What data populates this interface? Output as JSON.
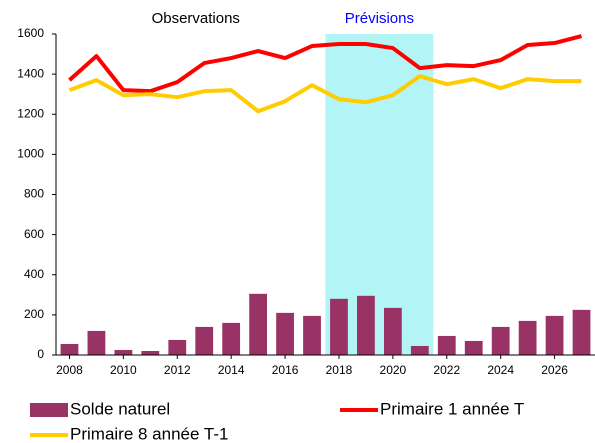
{
  "chart_data": {
    "type": "bar-line",
    "x": [
      2008,
      2009,
      2010,
      2011,
      2012,
      2013,
      2014,
      2015,
      2016,
      2017,
      2018,
      2019,
      2020,
      2021,
      2022,
      2023,
      2024,
      2025,
      2026,
      2027
    ],
    "series": [
      {
        "name": "Solde naturel",
        "type": "bar",
        "color": "#993366",
        "values": [
          55,
          120,
          25,
          20,
          75,
          140,
          160,
          305,
          210,
          195,
          280,
          295,
          235,
          45,
          95,
          70,
          140,
          170,
          195,
          225
        ]
      },
      {
        "name": "Primaire 1 année T",
        "type": "line",
        "color": "#ff0000",
        "values": [
          1370,
          1490,
          1320,
          1315,
          1360,
          1455,
          1480,
          1515,
          1480,
          1540,
          1550,
          1550,
          1530,
          1430,
          1445,
          1440,
          1470,
          1545,
          1555,
          1590
        ]
      },
      {
        "name": "Primaire 8 année T-1",
        "type": "line",
        "color": "#ffcc00",
        "values": [
          1320,
          1370,
          1295,
          1300,
          1285,
          1315,
          1320,
          1215,
          1265,
          1345,
          1275,
          1260,
          1295,
          1390,
          1350,
          1375,
          1330,
          1375,
          1365,
          1365
        ]
      }
    ],
    "observations_label": "Observations",
    "forecast": {
      "label": "Prévisions",
      "start": 2018,
      "end": 2021,
      "color": "#b3f5f7"
    },
    "xlim": [
      2007.5,
      2027.5
    ],
    "xticks": [
      2008,
      2010,
      2012,
      2014,
      2016,
      2018,
      2020,
      2022,
      2024,
      2026
    ],
    "ylim": [
      0,
      1600
    ],
    "yticks": [
      0,
      200,
      400,
      600,
      800,
      1000,
      1200,
      1400,
      1600
    ],
    "grid": false
  }
}
